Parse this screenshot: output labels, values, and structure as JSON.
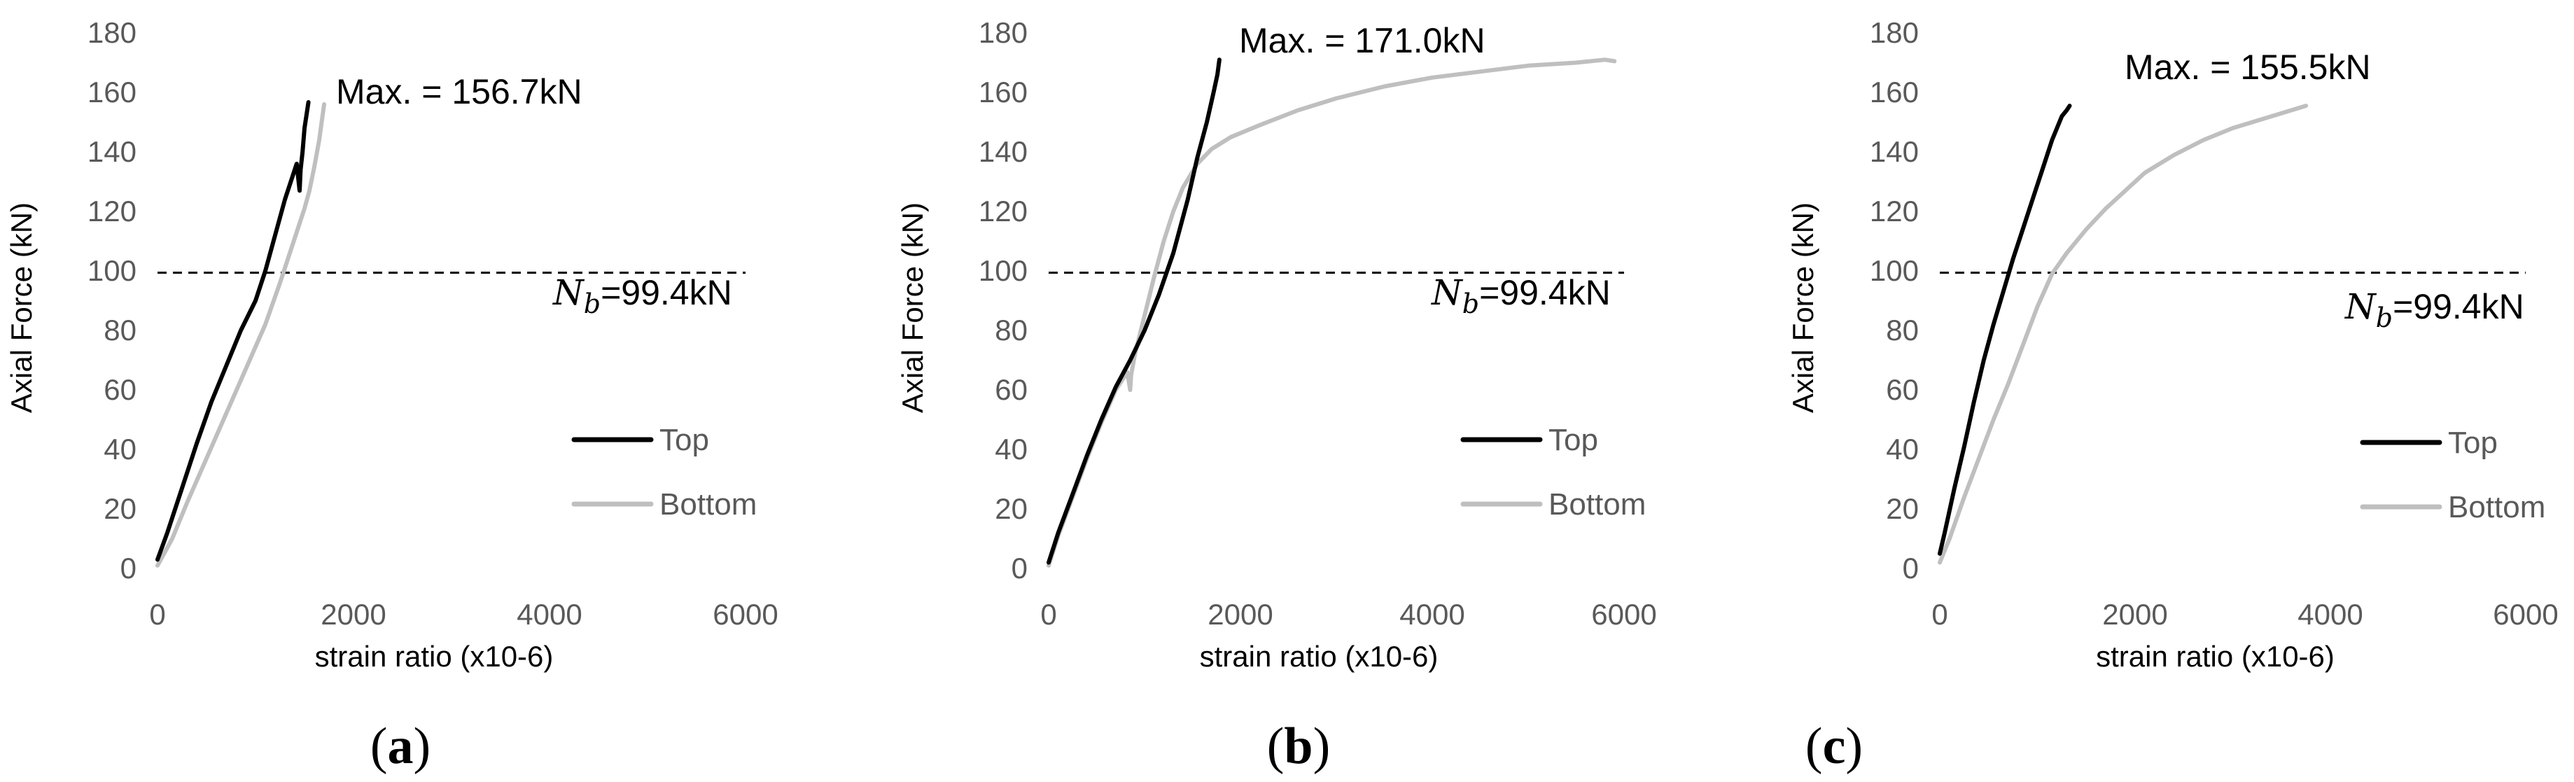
{
  "chart_data": [
    {
      "type": "line",
      "panel": "a",
      "caption": {
        "open": "(",
        "letter": "a",
        "close": ")"
      },
      "xlabel": "strain ratio (x10-6)",
      "ylabel": "Axial Force (kN)",
      "xlim": [
        0,
        6000
      ],
      "ylim": [
        0,
        180
      ],
      "xticks": [
        0,
        2000,
        4000,
        6000
      ],
      "yticks": [
        0,
        20,
        40,
        60,
        80,
        100,
        120,
        140,
        160,
        180
      ],
      "max_label": "Max. = 156.7kN",
      "reference_line": {
        "y": 99.4,
        "style": "dashed",
        "label_symbol": "N",
        "label_sub": "b",
        "label_value": "=99.4kN"
      },
      "legend": {
        "position": "bottom-right"
      },
      "series": [
        {
          "name": "Top",
          "color": "#000000",
          "x": [
            0,
            100,
            250,
            400,
            550,
            700,
            850,
            1000,
            1100,
            1200,
            1300,
            1380,
            1420,
            1450,
            1460,
            1480,
            1500,
            1540
          ],
          "y": [
            3,
            12,
            27,
            42,
            56,
            68,
            80,
            90,
            100,
            112,
            124,
            132,
            136,
            127,
            134,
            140,
            148,
            156.7
          ]
        },
        {
          "name": "Bottom",
          "color": "#bfbfbf",
          "x": [
            0,
            150,
            300,
            500,
            700,
            900,
            1100,
            1250,
            1350,
            1450,
            1500,
            1550,
            1600,
            1650,
            1700
          ],
          "y": [
            1,
            10,
            22,
            37,
            52,
            67,
            82,
            96,
            106,
            116,
            121,
            127,
            135,
            144,
            156
          ]
        }
      ]
    },
    {
      "type": "line",
      "panel": "b",
      "caption": {
        "open": "(",
        "letter": "b",
        "close": ")"
      },
      "xlabel": "strain ratio (x10-6)",
      "ylabel": "Axial Force (kN)",
      "xlim": [
        0,
        6000
      ],
      "ylim": [
        0,
        180
      ],
      "xticks": [
        0,
        2000,
        4000,
        6000
      ],
      "yticks": [
        0,
        20,
        40,
        60,
        80,
        100,
        120,
        140,
        160,
        180
      ],
      "max_label": "Max. = 171.0kN",
      "reference_line": {
        "y": 99.4,
        "style": "dashed",
        "label_symbol": "N",
        "label_sub": "b",
        "label_value": "=99.4kN"
      },
      "legend": {
        "position": "bottom-right"
      },
      "series": [
        {
          "name": "Top",
          "color": "#000000",
          "x": [
            0,
            100,
            250,
            400,
            550,
            700,
            850,
            1000,
            1150,
            1300,
            1450,
            1550,
            1650,
            1720,
            1760,
            1780
          ],
          "y": [
            2,
            12,
            25,
            38,
            50,
            61,
            70,
            80,
            92,
            106,
            124,
            138,
            150,
            160,
            166,
            171
          ]
        },
        {
          "name": "Bottom",
          "color": "#bfbfbf",
          "x": [
            0,
            100,
            250,
            400,
            550,
            700,
            820,
            850,
            860,
            900,
            1000,
            1100,
            1200,
            1300,
            1400,
            1550,
            1700,
            1900,
            2200,
            2600,
            3000,
            3500,
            4000,
            4500,
            5000,
            5500,
            5800,
            5900
          ],
          "y": [
            1,
            11,
            24,
            37,
            49,
            60,
            66,
            60,
            65,
            72,
            85,
            98,
            110,
            120,
            128,
            136,
            141,
            145,
            149,
            154,
            158,
            162,
            165,
            167,
            169,
            170,
            171,
            170.5
          ]
        }
      ]
    },
    {
      "type": "line",
      "panel": "c",
      "caption": {
        "open": "(",
        "letter": "c",
        "close": ")"
      },
      "xlabel": "strain ratio (x10-6)",
      "ylabel": "Axial Force (kN)",
      "xlim": [
        0,
        6000
      ],
      "ylim": [
        0,
        180
      ],
      "xticks": [
        0,
        2000,
        4000,
        6000
      ],
      "yticks": [
        0,
        20,
        40,
        60,
        80,
        100,
        120,
        140,
        160,
        180
      ],
      "max_label": "Max. = 155.5kN",
      "reference_line": {
        "y": 99.4,
        "style": "dashed",
        "label_symbol": "N",
        "label_sub": "b",
        "label_value": "=99.4kN"
      },
      "legend": {
        "position": "bottom-right"
      },
      "series": [
        {
          "name": "Top",
          "color": "#000000",
          "x": [
            0,
            50,
            150,
            250,
            350,
            450,
            550,
            650,
            750,
            850,
            950,
            1050,
            1150,
            1250,
            1300,
            1330
          ],
          "y": [
            5,
            12,
            27,
            41,
            56,
            70,
            82,
            93,
            104,
            114,
            124,
            134,
            144,
            152,
            154,
            155.5
          ]
        },
        {
          "name": "Bottom",
          "color": "#bfbfbf",
          "x": [
            0,
            100,
            250,
            400,
            550,
            700,
            850,
            1000,
            1150,
            1300,
            1500,
            1700,
            1900,
            2100,
            2400,
            2700,
            3000,
            3300,
            3600,
            3750
          ],
          "y": [
            2,
            10,
            24,
            37,
            50,
            62,
            75,
            88,
            99,
            106,
            114,
            121,
            127,
            133,
            139,
            144,
            148,
            151,
            154,
            155.5
          ]
        }
      ]
    }
  ]
}
